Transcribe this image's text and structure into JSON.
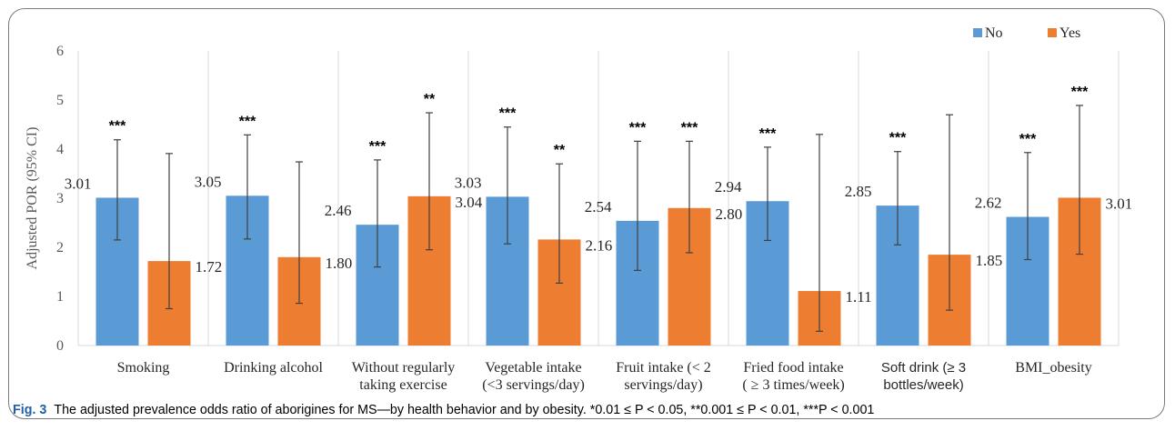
{
  "caption": {
    "label": "Fig. 3",
    "text": "The adjusted prevalence odds ratio of aborigines for MS—by health behavior and by obesity. *0.01 ≤ P < 0.05, **0.001 ≤ P < 0.01, ***P < 0.001"
  },
  "colors": {
    "no": "#5b9bd5",
    "yes": "#ed7d31",
    "grid": "#d9d9d9",
    "errorbar": "#404040"
  },
  "chart_data": {
    "type": "bar",
    "ylabel": "Adjusted  POR (95% CI)",
    "ylim": [
      0,
      6
    ],
    "yticks": [
      "0",
      "1",
      "2",
      "3",
      "4",
      "5",
      "6"
    ],
    "legend_position": "top-right",
    "categories": [
      {
        "label": [
          "Smoking"
        ],
        "sans": false
      },
      {
        "label": [
          "Drinking alcohol"
        ],
        "sans": false
      },
      {
        "label": [
          "Without regularly",
          "taking exercise"
        ],
        "sans": false
      },
      {
        "label": [
          "Vegetable intake",
          "(<3 servings/day)"
        ],
        "sans": false
      },
      {
        "label": [
          "Fruit intake (< 2",
          "servings/day)"
        ],
        "sans": false
      },
      {
        "label": [
          "Fried food intake",
          "( ≥ 3 times/week)"
        ],
        "sans": false
      },
      {
        "label": [
          "Soft drink (≥ 3",
          "bottles/week)"
        ],
        "sans": true
      },
      {
        "label": [
          "BMI_obesity"
        ],
        "sans": false
      }
    ],
    "series": [
      {
        "name": "No",
        "values": [
          3.01,
          3.05,
          2.46,
          3.03,
          2.54,
          2.94,
          2.85,
          2.62
        ],
        "labels": [
          "3.01",
          "3.05",
          "2.46",
          "3.03",
          "2.54",
          "2.94",
          "2.85",
          "2.62"
        ],
        "ci_low": [
          2.15,
          2.17,
          1.6,
          2.07,
          1.53,
          2.14,
          2.05,
          1.75
        ],
        "ci_high": [
          4.19,
          4.29,
          3.78,
          4.45,
          4.16,
          4.04,
          3.95,
          3.93
        ],
        "significance": [
          "***",
          "***",
          "***",
          "***",
          "***",
          "***",
          "***",
          "***"
        ]
      },
      {
        "name": "Yes",
        "values": [
          1.72,
          1.8,
          3.04,
          2.16,
          2.8,
          1.11,
          1.85,
          3.01
        ],
        "labels": [
          "1.72",
          "1.80",
          "3.04",
          "2.16",
          "2.80",
          "1.11",
          "1.85",
          "3.01"
        ],
        "ci_low": [
          0.75,
          0.86,
          1.95,
          1.27,
          1.89,
          0.29,
          0.72,
          1.86
        ],
        "ci_high": [
          3.91,
          3.74,
          4.74,
          3.7,
          4.16,
          4.3,
          4.7,
          4.89
        ],
        "significance": [
          "",
          "",
          "**",
          "**",
          "***",
          "",
          "",
          "***"
        ]
      }
    ]
  }
}
